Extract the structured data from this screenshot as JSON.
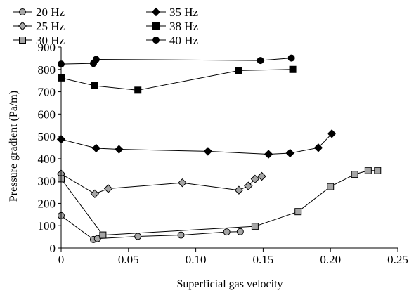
{
  "chart_data": {
    "type": "line",
    "title": "",
    "xlabel": "Superficial gas velocity",
    "ylabel": "Pressure gradient (Pa/m)",
    "xlim": [
      0,
      0.25
    ],
    "ylim": [
      0,
      900
    ],
    "xticks": [
      0,
      0.05,
      0.1,
      0.15,
      0.2,
      0.25
    ],
    "xtick_labels": [
      "0",
      "0.05",
      "0.10",
      "0.15",
      "0.20",
      "0.25"
    ],
    "yticks": [
      0,
      100,
      200,
      300,
      400,
      500,
      600,
      700,
      800,
      900
    ],
    "ytick_labels": [
      "0",
      "100",
      "200",
      "300",
      "400",
      "500",
      "600",
      "700",
      "800",
      "900"
    ],
    "grid": false,
    "legend_position": "top-left",
    "series": [
      {
        "name": "20 Hz",
        "marker": "circle",
        "fill": "#a6a6a6",
        "x": [
          0,
          0.024,
          0.027,
          0.057,
          0.089,
          0.123,
          0.133
        ],
        "y": [
          145,
          38,
          42,
          52,
          58,
          72,
          73
        ]
      },
      {
        "name": "25 Hz",
        "marker": "diamond",
        "fill": "#a6a6a6",
        "x": [
          0,
          0.025,
          0.035,
          0.09,
          0.132,
          0.139,
          0.144,
          0.149
        ],
        "y": [
          332,
          243,
          266,
          292,
          259,
          278,
          309,
          321
        ]
      },
      {
        "name": "30 Hz",
        "marker": "square",
        "fill": "#a6a6a6",
        "x": [
          0,
          0.031,
          0.144,
          0.176,
          0.2,
          0.218,
          0.228,
          0.235
        ],
        "y": [
          310,
          58,
          97,
          163,
          275,
          330,
          347,
          347
        ]
      },
      {
        "name": "35 Hz",
        "marker": "diamond",
        "fill": "#000000",
        "x": [
          0,
          0.026,
          0.043,
          0.109,
          0.154,
          0.17,
          0.191,
          0.201
        ],
        "y": [
          487,
          447,
          442,
          433,
          420,
          425,
          449,
          512
        ]
      },
      {
        "name": "38 Hz",
        "marker": "square",
        "fill": "#000000",
        "x": [
          0,
          0.025,
          0.057,
          0.132,
          0.172
        ],
        "y": [
          762,
          727,
          707,
          795,
          800
        ]
      },
      {
        "name": "40 Hz",
        "marker": "circle",
        "fill": "#000000",
        "x": [
          0,
          0.024,
          0.026,
          0.148,
          0.171
        ],
        "y": [
          824,
          827,
          845,
          840,
          851
        ]
      }
    ]
  }
}
